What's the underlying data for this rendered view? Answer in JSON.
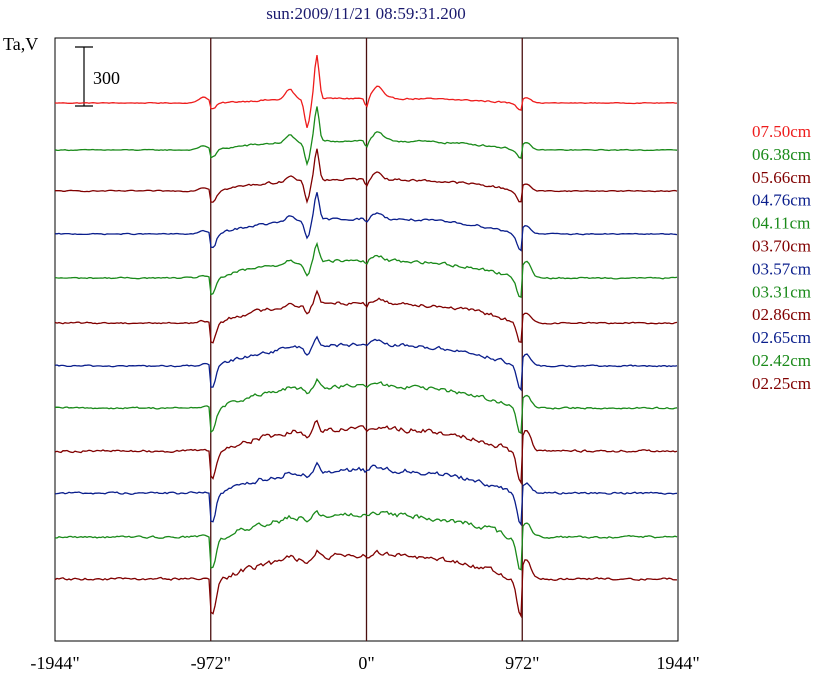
{
  "chart_data": {
    "type": "line",
    "title": "sun:2009/11/21 08:59:31.200",
    "ylabel": "Ta,V",
    "scale_bar_label": "300",
    "scale_bar_value": 300,
    "xlim": [
      -1944,
      1944
    ],
    "x_ticks": [
      {
        "value": -1944,
        "label": "-1944\""
      },
      {
        "value": -972,
        "label": "-972\""
      },
      {
        "value": 0,
        "label": "0\""
      },
      {
        "value": 972,
        "label": "972\""
      },
      {
        "value": 1944,
        "label": "1944\""
      }
    ],
    "vertical_markers": [
      -972,
      0,
      972
    ],
    "legend_position": "right",
    "series": [
      {
        "name": "07.50cm",
        "color": "#ee1c1c",
        "baseline": 103,
        "limb_jump": 0.3,
        "disk": 0.2,
        "limb_bright": 0.4,
        "noise": 0.4,
        "spike": 2.2,
        "ripple": 1.0
      },
      {
        "name": "06.38cm",
        "color": "#1a8a1a",
        "baseline": 150,
        "limb_jump": 0.4,
        "disk": 0.35,
        "limb_bright": 0.5,
        "noise": 0.5,
        "spike": 1.7,
        "ripple": 0.7
      },
      {
        "name": "05.66cm",
        "color": "#800000",
        "baseline": 191,
        "limb_jump": 0.55,
        "disk": 0.45,
        "limb_bright": 0.5,
        "noise": 0.6,
        "spike": 1.6,
        "ripple": 0.6
      },
      {
        "name": "04.76cm",
        "color": "#0a1e8c",
        "baseline": 234,
        "limb_jump": 0.75,
        "disk": 0.6,
        "limb_bright": 0.6,
        "noise": 0.6,
        "spike": 1.3,
        "ripple": 0.5
      },
      {
        "name": "04.11cm",
        "color": "#1a8a1a",
        "baseline": 278,
        "limb_jump": 0.9,
        "disk": 0.7,
        "limb_bright": 1.2,
        "noise": 0.8,
        "spike": 0.9,
        "ripple": 0.4
      },
      {
        "name": "03.70cm",
        "color": "#800000",
        "baseline": 323,
        "limb_jump": 1.0,
        "disk": 0.8,
        "limb_bright": 0.7,
        "noise": 0.9,
        "spike": 0.6,
        "ripple": 0.3
      },
      {
        "name": "03.57cm",
        "color": "#0a1e8c",
        "baseline": 366,
        "limb_jump": 1.1,
        "disk": 0.85,
        "limb_bright": 0.8,
        "noise": 0.9,
        "spike": 0.5,
        "ripple": 0.3
      },
      {
        "name": "03.31cm",
        "color": "#1a8a1a",
        "baseline": 408,
        "limb_jump": 1.2,
        "disk": 0.9,
        "limb_bright": 0.9,
        "noise": 1.0,
        "spike": 0.4,
        "ripple": 0.25
      },
      {
        "name": "02.86cm",
        "color": "#800000",
        "baseline": 451,
        "limb_jump": 1.35,
        "disk": 0.95,
        "limb_bright": 1.5,
        "noise": 1.3,
        "spike": 0.45,
        "ripple": 0.2
      },
      {
        "name": "02.65cm",
        "color": "#0a1e8c",
        "baseline": 493,
        "limb_jump": 1.45,
        "disk": 1.0,
        "limb_bright": 0.7,
        "noise": 1.2,
        "spike": 0.35,
        "ripple": 0.2
      },
      {
        "name": "02.42cm",
        "color": "#1a8a1a",
        "baseline": 537,
        "limb_jump": 1.55,
        "disk": 1.0,
        "limb_bright": 1.0,
        "noise": 1.2,
        "spike": 0.3,
        "ripple": 0.2
      },
      {
        "name": "02.25cm",
        "color": "#800000",
        "baseline": 579,
        "limb_jump": 1.6,
        "disk": 1.05,
        "limb_bright": 1.4,
        "noise": 1.3,
        "spike": 0.3,
        "ripple": 0.2
      }
    ]
  }
}
